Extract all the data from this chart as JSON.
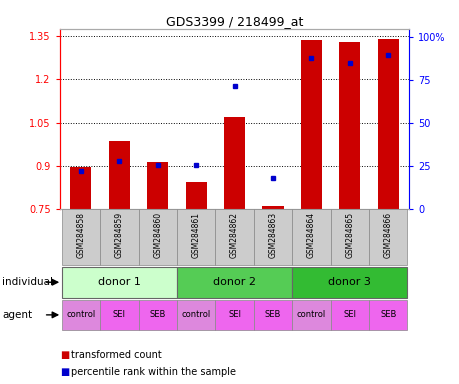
{
  "title": "GDS3399 / 218499_at",
  "samples": [
    "GSM284858",
    "GSM284859",
    "GSM284860",
    "GSM284861",
    "GSM284862",
    "GSM284863",
    "GSM284864",
    "GSM284865",
    "GSM284866"
  ],
  "bar_values": [
    0.895,
    0.985,
    0.915,
    0.845,
    1.07,
    0.76,
    1.335,
    1.33,
    1.34
  ],
  "percentile_values": [
    22,
    28,
    26,
    26,
    72,
    18,
    88,
    85,
    90
  ],
  "bar_bottom": 0.75,
  "ylim_left": [
    0.75,
    1.375
  ],
  "ylim_right": [
    0,
    105
  ],
  "yticks_left": [
    0.75,
    0.9,
    1.05,
    1.2,
    1.35
  ],
  "yticks_right": [
    0,
    25,
    50,
    75,
    100
  ],
  "ytick_labels_right": [
    "0",
    "25",
    "50",
    "75",
    "100%"
  ],
  "bar_color": "#cc0000",
  "dot_color": "#0000cc",
  "grid_color": "#000000",
  "bg_color": "#ffffff",
  "individual_groups": [
    {
      "label": "donor 1",
      "start": 0,
      "end": 3,
      "color": "#ccffcc"
    },
    {
      "label": "donor 2",
      "start": 3,
      "end": 6,
      "color": "#55cc55"
    },
    {
      "label": "donor 3",
      "start": 6,
      "end": 9,
      "color": "#33bb33"
    }
  ],
  "agent_labels": [
    "control",
    "SEI",
    "SEB",
    "control",
    "SEI",
    "SEB",
    "control",
    "SEI",
    "SEB"
  ],
  "agent_colors": [
    "#dd88dd",
    "#ee66ee",
    "#ee66ee",
    "#dd88dd",
    "#ee66ee",
    "#ee66ee",
    "#dd88dd",
    "#ee66ee",
    "#ee66ee"
  ],
  "header_bg": "#cccccc",
  "legend_bar_label": "transformed count",
  "legend_dot_label": "percentile rank within the sample",
  "row_label_individual": "individual",
  "row_label_agent": "agent"
}
